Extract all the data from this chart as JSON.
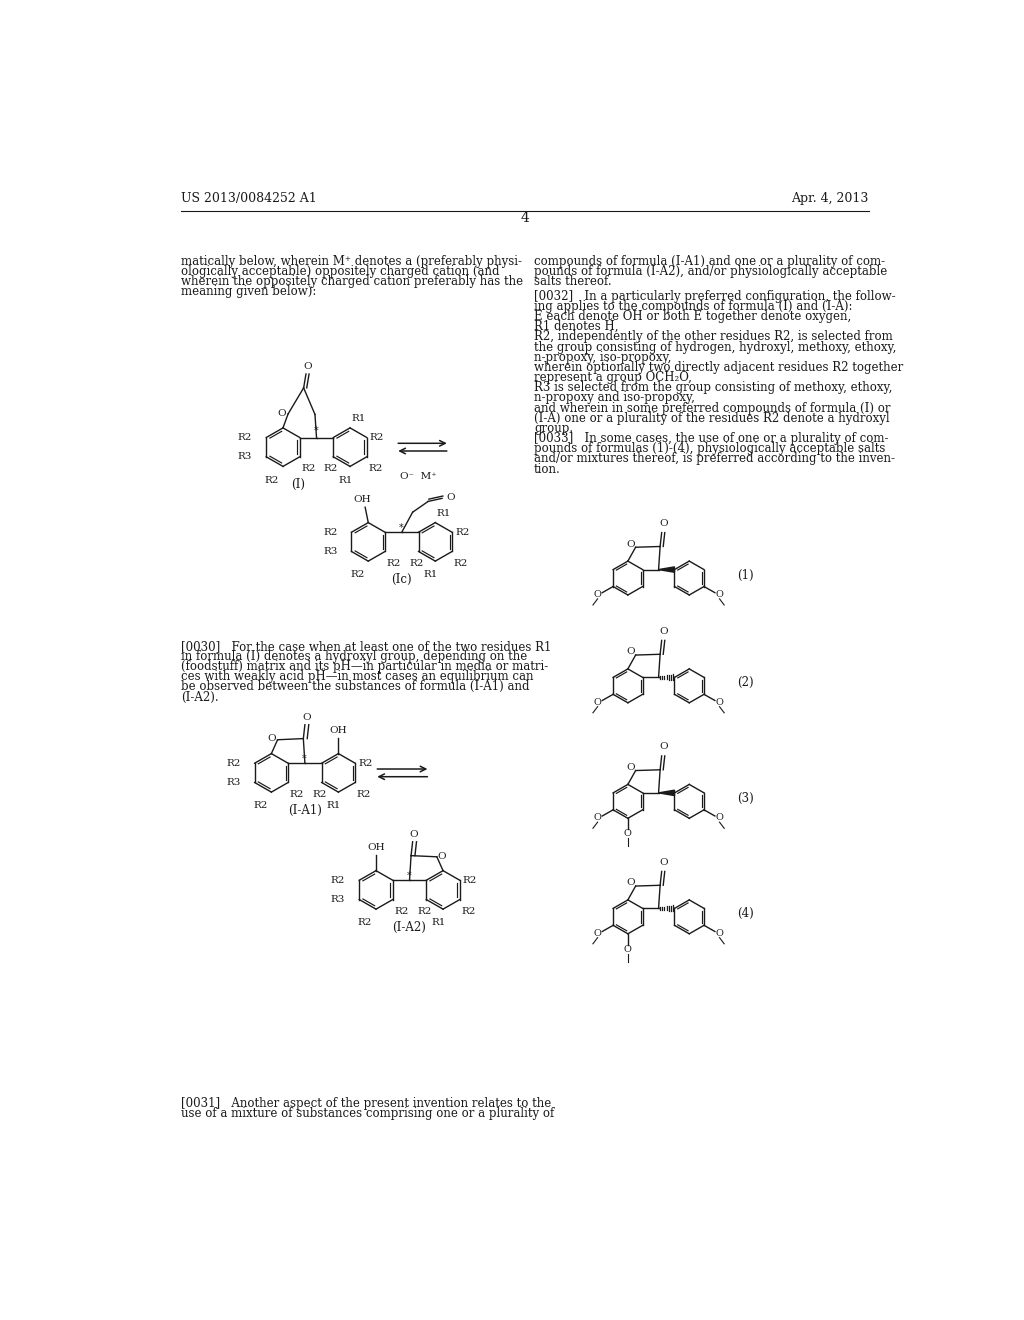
{
  "page_number": "4",
  "patent_number": "US 2013/0084252 A1",
  "patent_date": "Apr. 4, 2013",
  "background_color": "#ffffff",
  "text_color": "#1a1a1a",
  "left_col_top": [
    "matically below, wherein M⁺ denotes a (preferably physi-",
    "ologically acceptable) oppositely charged cation (and",
    "wherein the oppositely charged cation preferably has the",
    "meaning given below):"
  ],
  "right_col_top": [
    "compounds of formula (I-A1) and one or a plurality of com-",
    "pounds of formula (I-A2), and/or physiologically acceptable",
    "salts thereof.",
    "[0032]   In a particularly preferred configuration, the follow-",
    "ing applies to the compounds of formula (I) and (I-A):",
    "E each denote OH or both E together denote oxygen,",
    "R1 denotes H,",
    "R2, independently of the other residues R2, is selected from",
    "the group consisting of hydrogen, hydroxyl, methoxy, ethoxy,",
    "n-propoxy, iso-propoxy,",
    "wherein optionally two directly adjacent residues R2 together",
    "represent a group OCH₂O,",
    "R3 is selected from the group consisting of methoxy, ethoxy,",
    "n-propoxy and iso-propoxy,",
    "and wherein in some preferred compounds of formula (I) or",
    "(I-A) one or a plurality of the residues R2 denote a hydroxyl",
    "group.",
    "[0033]   In some cases, the use of one or a plurality of com-",
    "pounds of formulas (1)-(4), physiologically acceptable salts",
    "and/or mixtures thereof, is preferred according to the inven-",
    "tion."
  ],
  "mid_left_text": [
    "[0030]   For the case when at least one of the two residues R1",
    "in formula (I) denotes a hydroxyl group, depending on the",
    "(foodstuff) matrix and its pH—in particular in media or matri-",
    "ces with weakly acid pH—in most cases an equilibrium can",
    "be observed between the substances of formula (I-A1) and",
    "(I-A2)."
  ],
  "bot_left_text": [
    "[0031]   Another aspect of the present invention relates to the",
    "use of a mixture of substances comprising one or a plurality of"
  ]
}
